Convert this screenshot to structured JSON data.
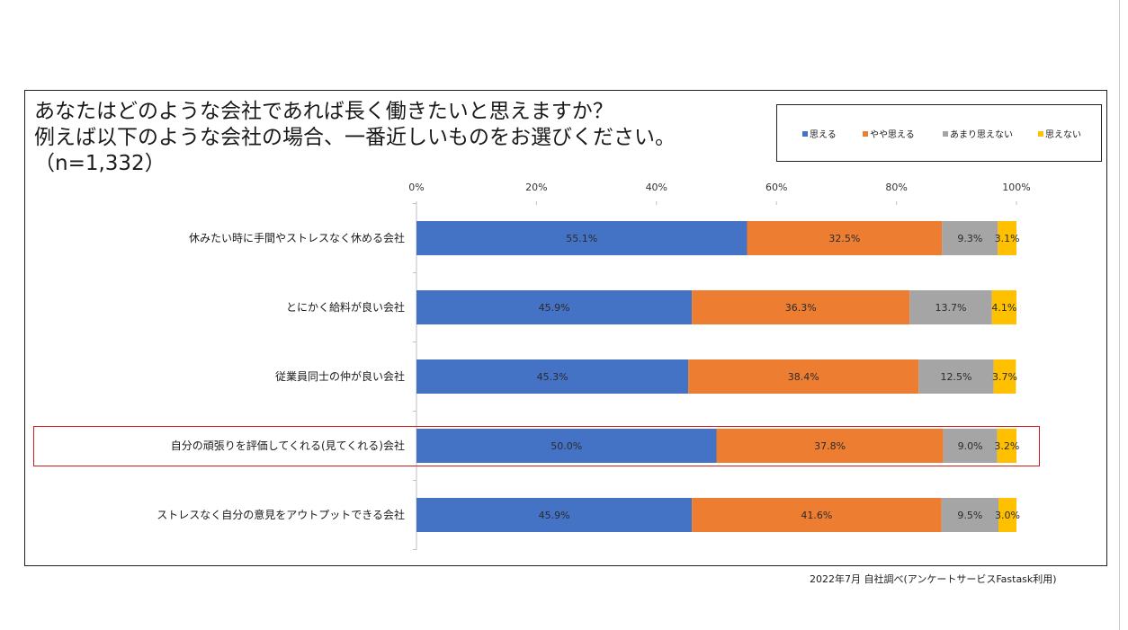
{
  "title_lines": [
    "あなたはどのような会社であれば長く働きたいと思えますか？",
    "例えば以下のような会社の場合、一番近しいものをお選びください。",
    "（n=1,332）"
  ],
  "source": "2022年7月 自社調べ(アンケートサービスFastask利用)",
  "colors": {
    "s1": "#4472c4",
    "s2": "#ed7d31",
    "s3": "#a5a5a5",
    "s4": "#ffc000"
  },
  "chart_data": {
    "type": "bar",
    "orientation": "horizontal",
    "stacked": "percent",
    "xlim": [
      0,
      100
    ],
    "x_ticks": [
      "0%",
      "20%",
      "40%",
      "60%",
      "80%",
      "100%"
    ],
    "categories": [
      "休みたい時に手間やストレスなく休める会社",
      "とにかく給料が良い会社",
      "従業員同士の仲が良い会社",
      "自分の頑張りを評価してくれる(見てくれる)会社",
      "ストレスなく自分の意見をアウトプットできる会社"
    ],
    "series": [
      {
        "name": "思える",
        "values": [
          55.1,
          45.9,
          45.3,
          50.0,
          45.9
        ],
        "labels": [
          "55.1%",
          "45.9%",
          "45.3%",
          "50.0%",
          "45.9%"
        ]
      },
      {
        "name": "やや思える",
        "values": [
          32.5,
          36.3,
          38.4,
          37.8,
          41.6
        ],
        "labels": [
          "32.5%",
          "36.3%",
          "38.4%",
          "37.8%",
          "41.6%"
        ]
      },
      {
        "name": "あまり思えない",
        "values": [
          9.3,
          13.7,
          12.5,
          9.0,
          9.5
        ],
        "labels": [
          "9.3%",
          "13.7%",
          "12.5%",
          "9.0%",
          "9.5%"
        ]
      },
      {
        "name": "思えない",
        "values": [
          3.1,
          4.1,
          3.7,
          3.2,
          3.0
        ],
        "labels": [
          "3.1%",
          "4.1%",
          "3.7%",
          "3.2%",
          "3.0%"
        ]
      }
    ],
    "highlighted_category_index": 3,
    "legend_position": "top-right"
  }
}
